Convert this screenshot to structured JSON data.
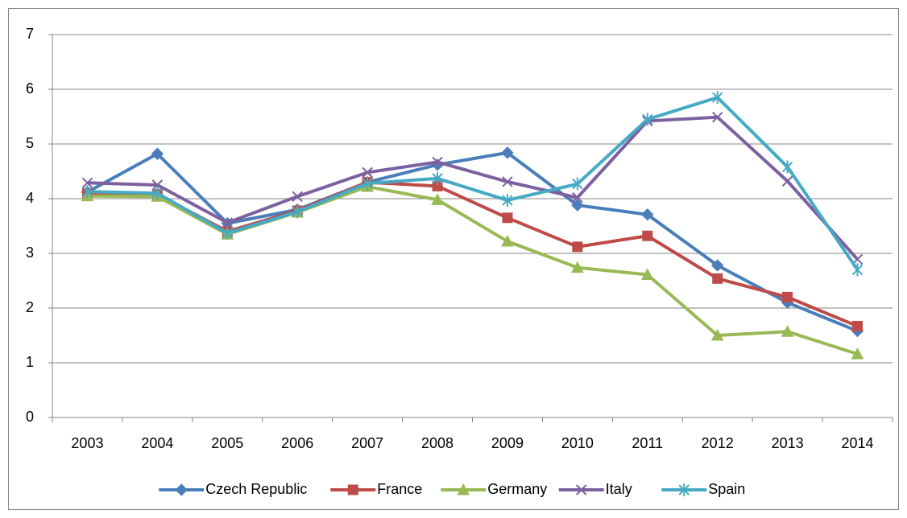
{
  "chart_data": {
    "type": "line",
    "categories": [
      "2003",
      "2004",
      "2005",
      "2006",
      "2007",
      "2008",
      "2009",
      "2010",
      "2011",
      "2012",
      "2013",
      "2014"
    ],
    "series": [
      {
        "name": "Czech Republic",
        "color": "#4a7ebb",
        "marker": "diamond",
        "values": [
          4.12,
          4.82,
          3.55,
          3.8,
          4.3,
          4.62,
          4.84,
          3.88,
          3.71,
          2.78,
          2.1,
          1.58
        ]
      },
      {
        "name": "France",
        "color": "#be4b48",
        "marker": "square",
        "values": [
          4.1,
          4.08,
          3.4,
          3.78,
          4.3,
          4.23,
          3.65,
          3.12,
          3.32,
          2.54,
          2.2,
          1.67
        ]
      },
      {
        "name": "Germany",
        "color": "#98b954",
        "marker": "triangle",
        "values": [
          4.05,
          4.04,
          3.35,
          3.75,
          4.22,
          3.98,
          3.22,
          2.74,
          2.61,
          1.5,
          1.57,
          1.16
        ]
      },
      {
        "name": "Italy",
        "color": "#7d60a0",
        "marker": "x",
        "values": [
          4.29,
          4.25,
          3.56,
          4.04,
          4.48,
          4.67,
          4.31,
          4.02,
          5.42,
          5.49,
          4.32,
          2.89
        ]
      },
      {
        "name": "Spain",
        "color": "#46aac5",
        "marker": "star",
        "values": [
          4.13,
          4.1,
          3.37,
          3.76,
          4.28,
          4.37,
          3.97,
          4.27,
          5.45,
          5.85,
          4.58,
          2.7
        ]
      }
    ],
    "ylim": [
      0,
      7
    ],
    "yticks": [
      0,
      1,
      2,
      3,
      4,
      5,
      6,
      7
    ],
    "grid": true,
    "legend": "bottom"
  }
}
